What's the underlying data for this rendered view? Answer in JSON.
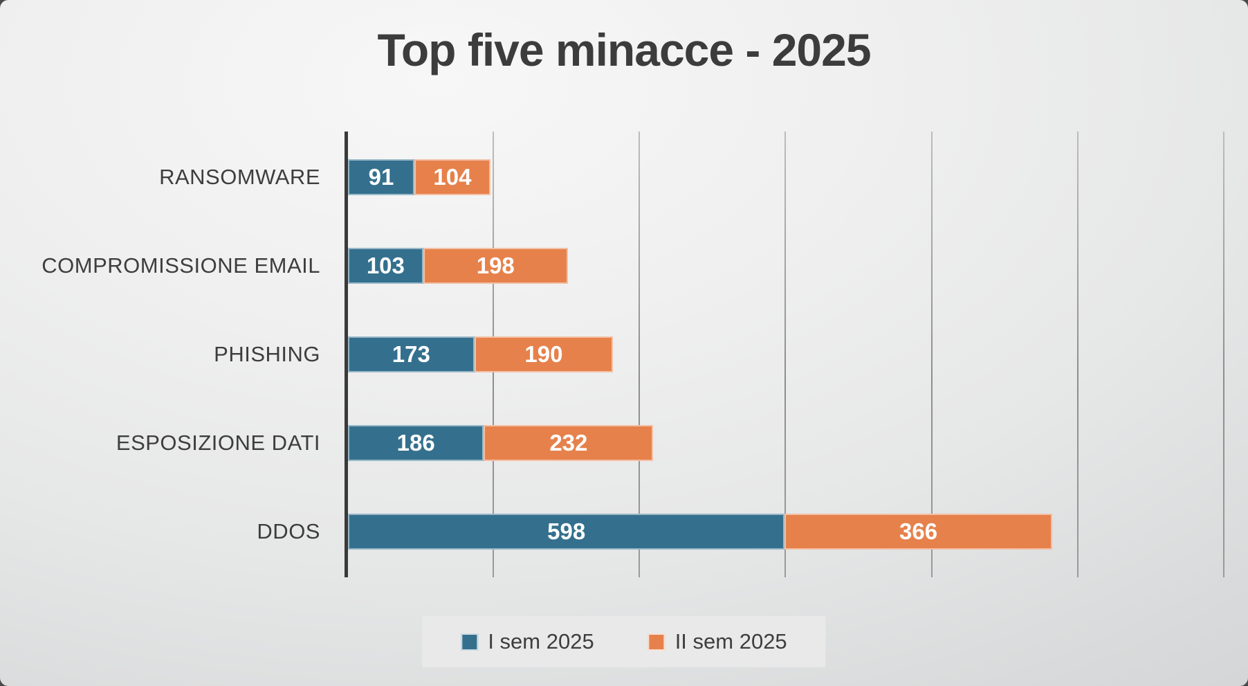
{
  "title": "Top five minacce - 2025",
  "chart_data": {
    "type": "bar",
    "orientation": "horizontal",
    "stacked": true,
    "title": "Top five minacce - 2025",
    "categories": [
      "RANSOMWARE",
      "COMPROMISSIONE EMAIL",
      "PHISHING",
      "ESPOSIZIONE DATI",
      "DDOS"
    ],
    "series": [
      {
        "name": "I sem 2025",
        "color": "#34708E",
        "values": [
          91,
          103,
          173,
          186,
          598
        ]
      },
      {
        "name": "II sem 2025",
        "color": "#E6814B",
        "values": [
          104,
          198,
          190,
          232,
          366
        ]
      }
    ],
    "xlim": [
      0,
      1200
    ],
    "grid_interval": 200,
    "grid": "on",
    "legend_position": "bottom",
    "data_labels": "inside-center"
  },
  "legend": {
    "items": [
      {
        "label": "I sem 2025",
        "color": "#34708E"
      },
      {
        "label": "II sem 2025",
        "color": "#E6814B"
      }
    ]
  },
  "colors": {
    "series1": "#34708E",
    "series2": "#E6814B",
    "text": "#3C3C3C",
    "axis": "#3A3A3A",
    "gridline": "#9B9B9B",
    "legend_bg": "#E9E9E9"
  }
}
